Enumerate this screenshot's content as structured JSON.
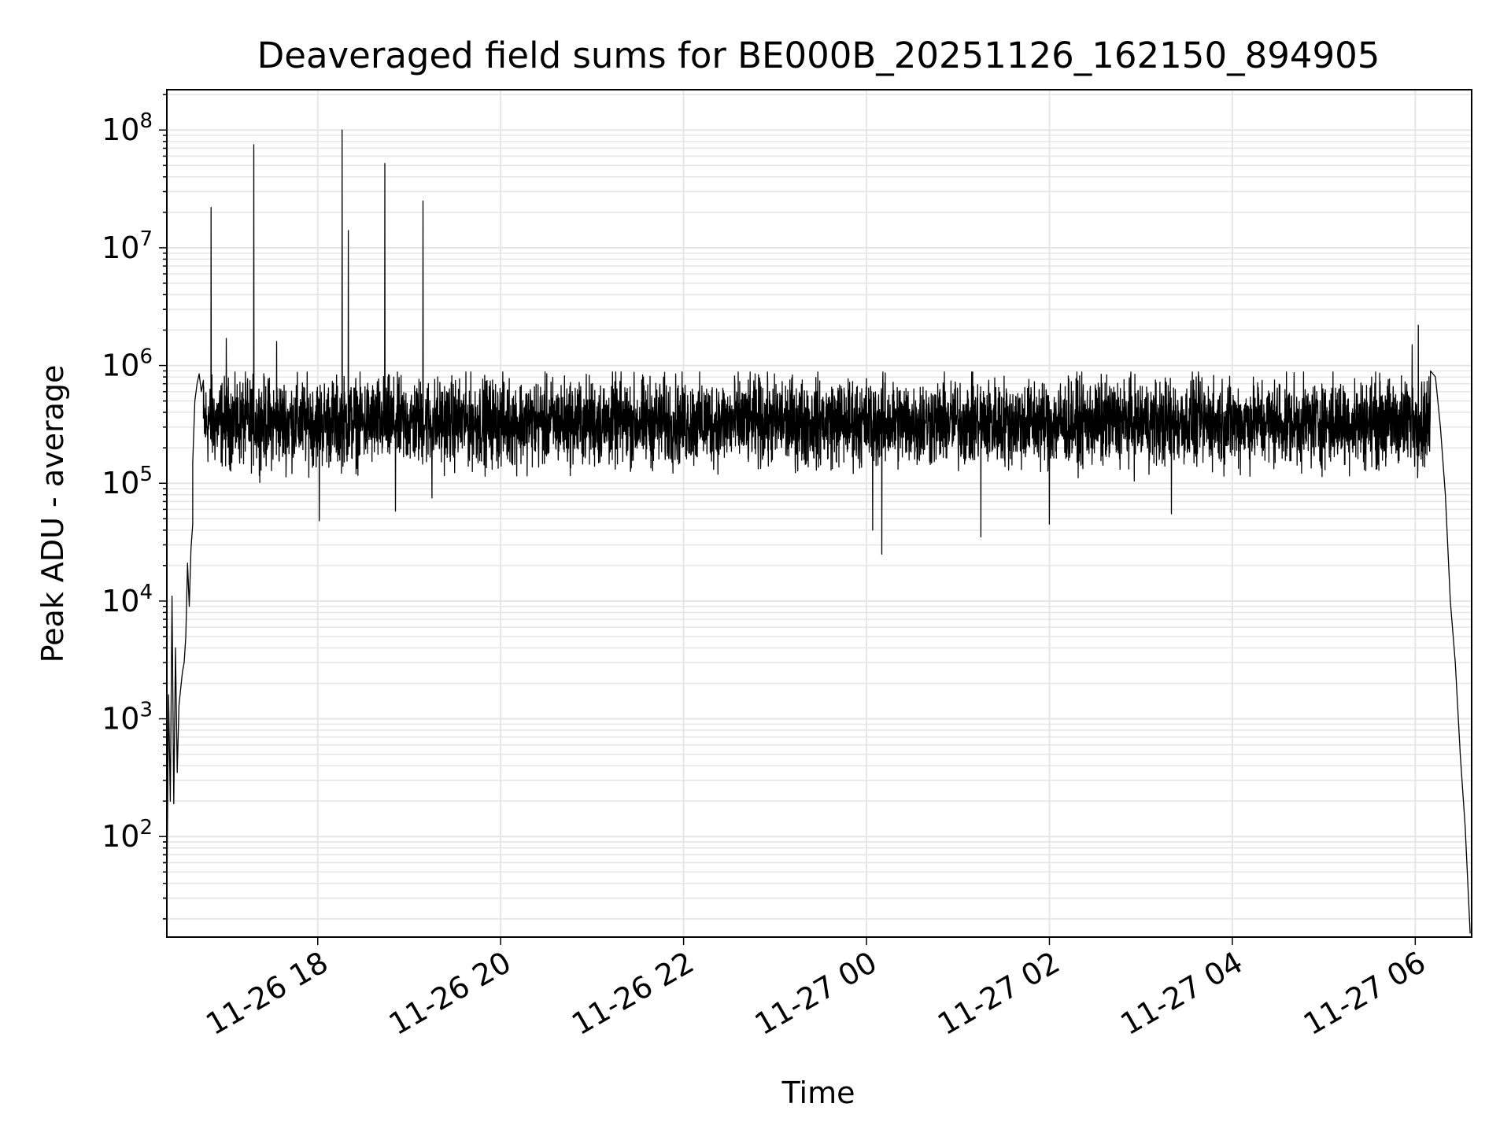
{
  "chart_data": {
    "type": "line",
    "title": "Deaveraged field sums for BE000B_20251126_162150_894905",
    "xlabel": "Time",
    "ylabel": "Peak ADU - average",
    "yscale": "log",
    "ylim": [
      14,
      220000000
    ],
    "xlim": [
      "2025-11-26 16:21",
      "2025-11-27 06:37"
    ],
    "grid": true,
    "x_ticks": [
      {
        "at": "2025-11-26 18:00",
        "label": "11-26 18"
      },
      {
        "at": "2025-11-26 20:00",
        "label": "11-26 20"
      },
      {
        "at": "2025-11-26 22:00",
        "label": "11-26 22"
      },
      {
        "at": "2025-11-27 00:00",
        "label": "11-27 00"
      },
      {
        "at": "2025-11-27 02:00",
        "label": "11-27 02"
      },
      {
        "at": "2025-11-27 04:00",
        "label": "11-27 04"
      },
      {
        "at": "2025-11-27 06:00",
        "label": "11-27 06"
      }
    ],
    "y_ticks": [
      {
        "value": 100,
        "base": "10",
        "exp": "2"
      },
      {
        "value": 1000,
        "base": "10",
        "exp": "3"
      },
      {
        "value": 10000,
        "base": "10",
        "exp": "4"
      },
      {
        "value": 100000,
        "base": "10",
        "exp": "5"
      },
      {
        "value": 1000000,
        "base": "10",
        "exp": "6"
      },
      {
        "value": 10000000,
        "base": "10",
        "exp": "7"
      },
      {
        "value": 100000000,
        "base": "10",
        "exp": "8"
      }
    ],
    "series": [
      {
        "color": "#000000",
        "summary": {
          "typical": 330000,
          "low": 100000,
          "high": 700000
        },
        "segments": [
          {
            "start": "2025-11-26 16:21",
            "end": "2025-11-26 16:38",
            "values": [
              30,
              1600,
              200,
              11000,
              190,
              4000,
              350,
              1300,
              1800,
              2500,
              3000,
              5000,
              21000,
              9000,
              28000,
              45000
            ]
          },
          {
            "start": "2025-11-26 16:38",
            "end": "2025-11-26 16:45",
            "values": [
              150000,
              500000,
              700000,
              850000,
              600000,
              750000
            ]
          },
          {
            "start": "2025-11-27 06:10",
            "end": "2025-11-27 06:36",
            "values": [
              900000,
              800000,
              300000,
              80000,
              10000,
              3000,
              500,
              120,
              15
            ]
          }
        ],
        "spikes": [
          {
            "time": "2025-11-26 16:50",
            "value": 22000000
          },
          {
            "time": "2025-11-26 17:00",
            "value": 1700000
          },
          {
            "time": "2025-11-26 17:18",
            "value": 75000000
          },
          {
            "time": "2025-11-26 17:33",
            "value": 1600000
          },
          {
            "time": "2025-11-26 18:16",
            "value": 100000000
          },
          {
            "time": "2025-11-26 18:20",
            "value": 14000000
          },
          {
            "time": "2025-11-26 18:44",
            "value": 52000000
          },
          {
            "time": "2025-11-26 19:09",
            "value": 25000000
          },
          {
            "time": "2025-11-27 05:58",
            "value": 1500000
          },
          {
            "time": "2025-11-27 06:02",
            "value": 2200000
          }
        ],
        "dips": [
          {
            "time": "2025-11-26 18:01",
            "value": 48000
          },
          {
            "time": "2025-11-26 18:51",
            "value": 58000
          },
          {
            "time": "2025-11-26 19:15",
            "value": 75000
          },
          {
            "time": "2025-11-27 00:10",
            "value": 25000
          },
          {
            "time": "2025-11-27 00:04",
            "value": 40000
          },
          {
            "time": "2025-11-27 01:15",
            "value": 35000
          },
          {
            "time": "2025-11-27 02:00",
            "value": 45000
          },
          {
            "time": "2025-11-27 03:20",
            "value": 55000
          }
        ]
      }
    ]
  }
}
